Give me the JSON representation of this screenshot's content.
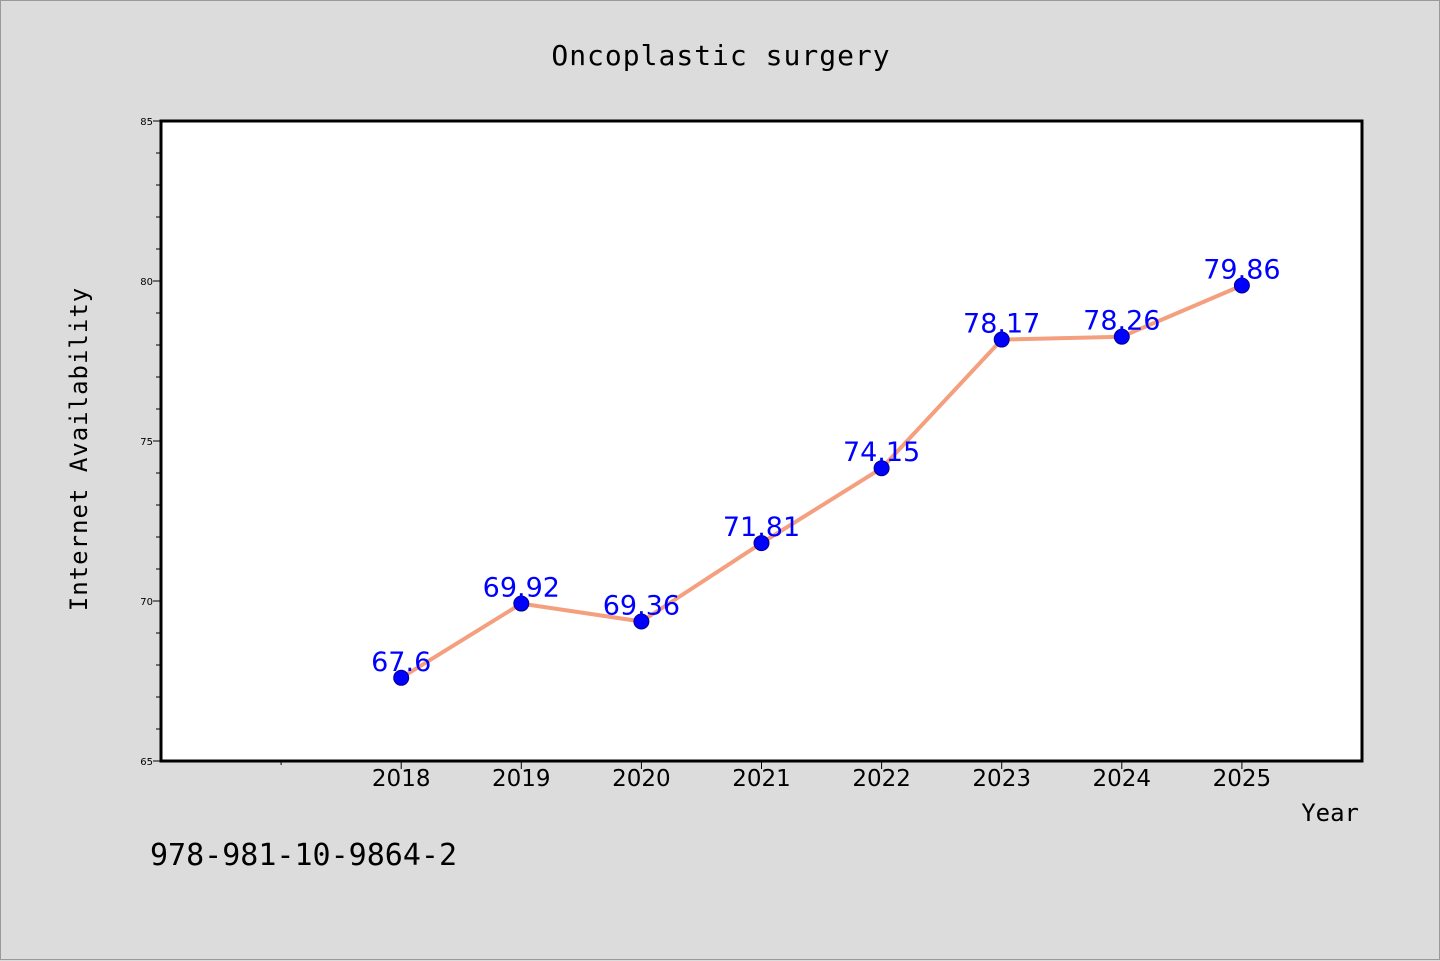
{
  "figure": {
    "footer_text": "978-981-10-9864-2",
    "background_color": "#dcdcdc",
    "plot_background_color": "#ffffff"
  },
  "chart_data": {
    "type": "line",
    "title": "Oncoplastic surgery",
    "xlabel": "Year",
    "ylabel": "Internet Availability",
    "x": [
      2018,
      2019,
      2020,
      2021,
      2022,
      2023,
      2024,
      2025
    ],
    "x_tick_labels": [
      "2018",
      "2019",
      "2020",
      "2021",
      "2022",
      "2023",
      "2024",
      "2025"
    ],
    "xlim": [
      2016,
      2026
    ],
    "ylim": [
      65,
      85
    ],
    "y_ticks": [
      65,
      70,
      75,
      80,
      85
    ],
    "y_tick_labels": [
      "65",
      "70",
      "75",
      "80",
      "85"
    ],
    "y_minor_step": 1,
    "grid": false,
    "legend": "none",
    "series": [
      {
        "values": [
          67.6,
          69.92,
          69.36,
          71.81,
          74.15,
          78.17,
          78.26,
          79.86
        ],
        "data_labels": [
          "67.6",
          "69.92",
          "69.36",
          "71.81",
          "74.15",
          "78.17",
          "78.26",
          "79.86"
        ],
        "line_color": "#f4a07f",
        "marker_color": "#0000ff",
        "label_color": "#0000ff"
      }
    ]
  }
}
